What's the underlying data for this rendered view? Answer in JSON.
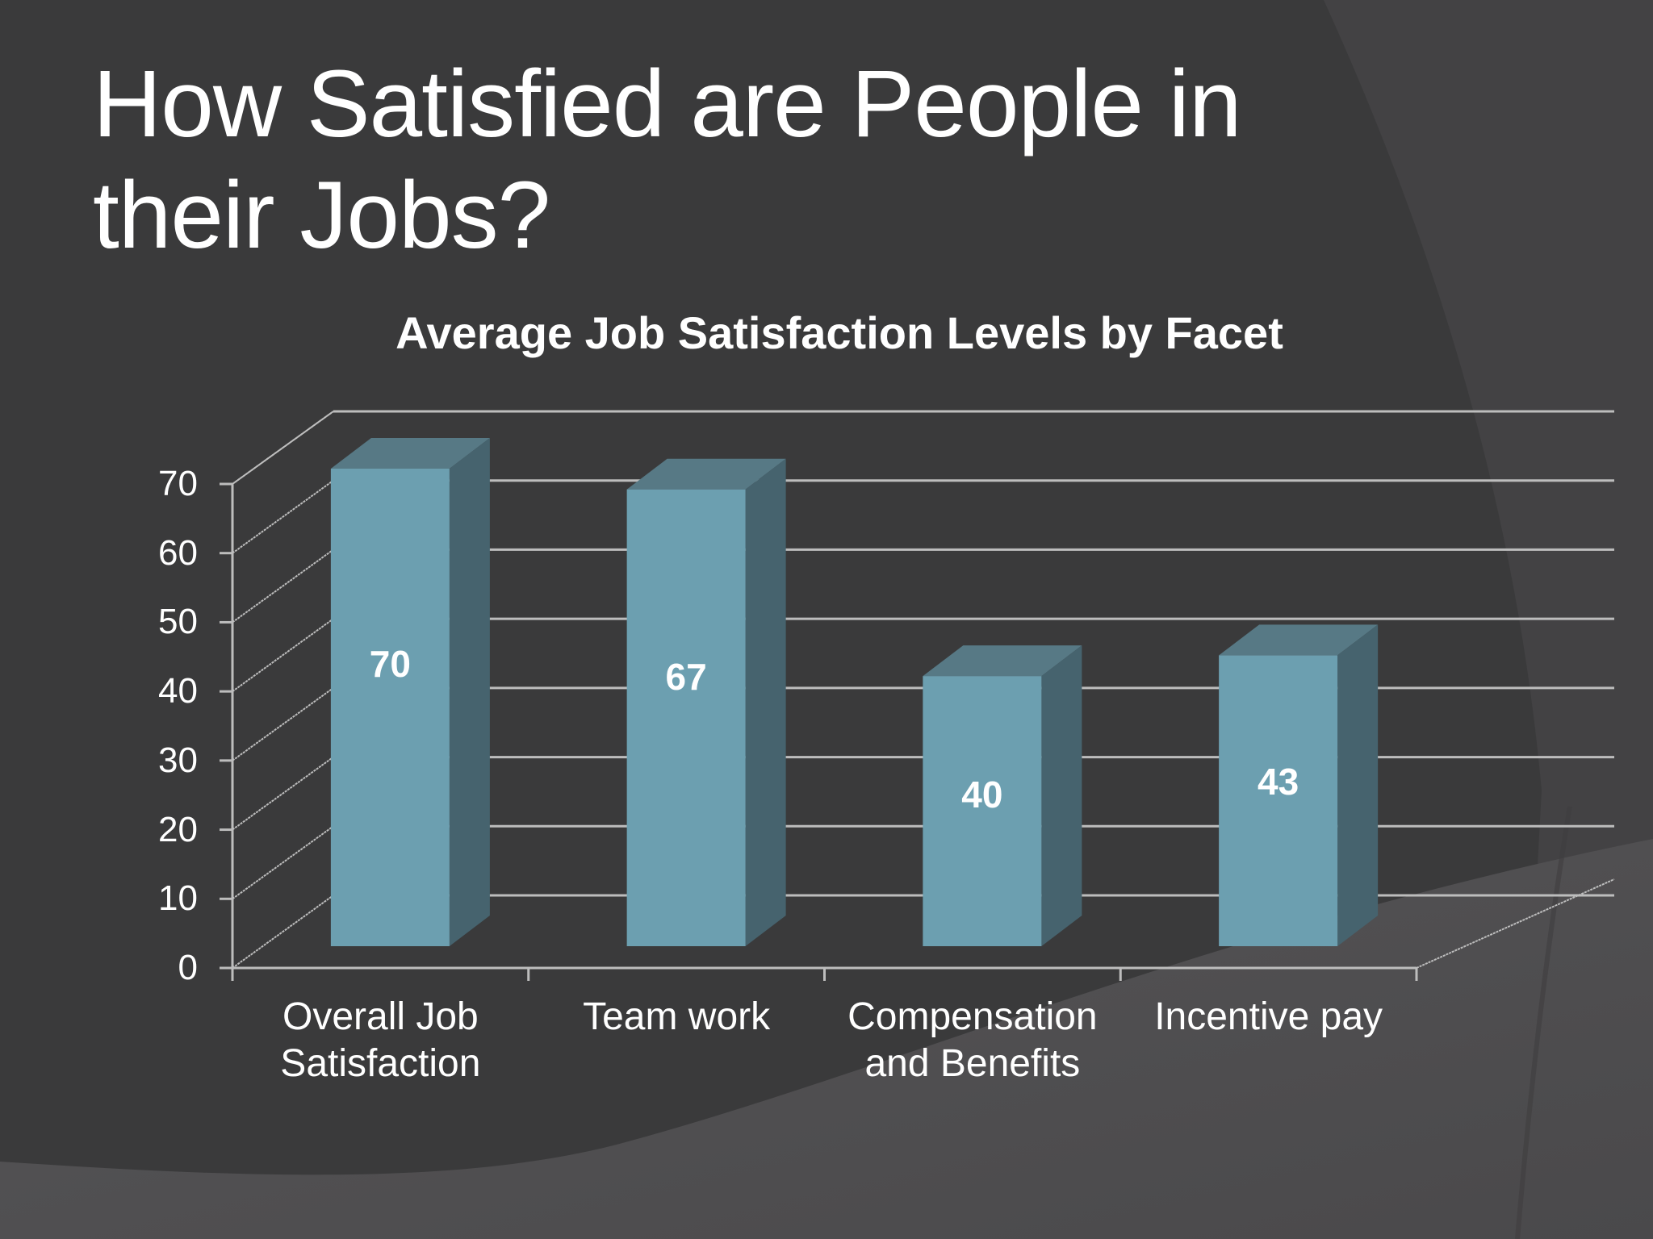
{
  "slide": {
    "title_line1": "How Satisfied are People in",
    "title_line2": "their Jobs?"
  },
  "colors": {
    "background": "#3a3a3b",
    "background_light": "#4f4e50",
    "bar_front": "#6c9fb0",
    "bar_top": "#577985",
    "bar_side": "#46636e",
    "gridline": "#bdbdbd",
    "text": "#ffffff"
  },
  "chart_data": {
    "type": "bar",
    "style": "3d-column",
    "title": "Average Job Satisfaction Levels by Facet",
    "categories": [
      "Overall Job Satisfaction",
      "Team work",
      "Compensation and Benefits",
      "Incentive pay"
    ],
    "category_lines": [
      [
        "Overall Job",
        "Satisfaction"
      ],
      [
        "Team work"
      ],
      [
        "Compensation",
        "and Benefits"
      ],
      [
        "Incentive pay"
      ]
    ],
    "values": [
      70,
      67,
      40,
      43
    ],
    "data_labels": [
      "70",
      "67",
      "40",
      "43"
    ],
    "xlabel": "",
    "ylabel": "",
    "ylim": [
      0,
      70
    ],
    "yticks": [
      0,
      10,
      20,
      30,
      40,
      50,
      60,
      70
    ],
    "ytick_labels": [
      "0",
      "10",
      "20",
      "30",
      "40",
      "50",
      "60",
      "70"
    ],
    "grid": true,
    "legend": null
  }
}
